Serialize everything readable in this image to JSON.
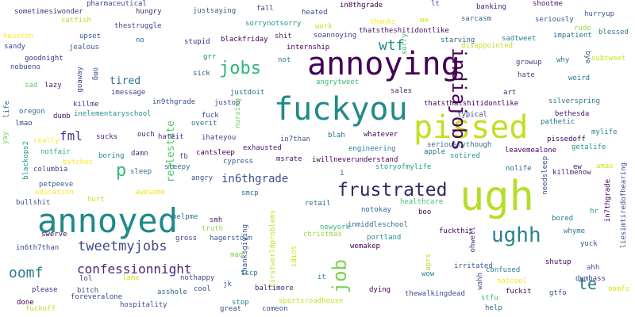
{
  "words": [
    {
      "text": "annoying",
      "color": "#440154"
    },
    {
      "text": "fuckyou",
      "color": "#1f8a89"
    },
    {
      "text": "pissed",
      "color": "#c2df23"
    },
    {
      "text": "ugh",
      "color": "#b5de2b"
    },
    {
      "text": "annoyed",
      "color": "#1f8a89"
    },
    {
      "text": "frustrated",
      "color": "#35275f"
    },
    {
      "text": "ughh",
      "color": "#26838e"
    },
    {
      "text": "jobs",
      "color": "#2fb47c"
    },
    {
      "text": "indiajobs",
      "color": "#440154"
    },
    {
      "text": "job",
      "color": "#7ad151"
    },
    {
      "text": "wtf",
      "color": "#1f8a89"
    },
    {
      "text": "tweetmyjobs",
      "color": "#3e4a89"
    },
    {
      "text": "confessionnight",
      "color": "#482677"
    },
    {
      "text": "oomf",
      "color": "#2a7b8e"
    },
    {
      "text": "fml",
      "color": "#453781"
    },
    {
      "text": "te",
      "color": "#27808e"
    },
    {
      "text": "p",
      "color": "#35b779"
    },
    {
      "text": "in6thgrade",
      "color": "#3b518b"
    },
    {
      "text": "tired",
      "color": "#2c728e"
    },
    {
      "text": "realestate",
      "color": "#56c667"
    },
    {
      "text": "sometimesiwonder",
      "color": "#46327e"
    },
    {
      "text": "pharmaceutical",
      "color": "#3f4788"
    },
    {
      "text": "hungry",
      "color": "#472a7a"
    },
    {
      "text": "justsaying",
      "color": "#33638d"
    },
    {
      "text": "fall",
      "color": "#433e85"
    },
    {
      "text": "heated",
      "color": "#3e4989"
    },
    {
      "text": "in8thgrade",
      "color": "#440154"
    },
    {
      "text": "banking",
      "color": "#482475"
    },
    {
      "text": "shootme",
      "color": "#481a6c"
    },
    {
      "text": "catfish",
      "color": "#b8de29"
    },
    {
      "text": "thestruggle",
      "color": "#3e4a89"
    },
    {
      "text": "sorrynotsorry",
      "color": "#21918c"
    },
    {
      "text": "work",
      "color": "#bddf26"
    },
    {
      "text": "thanks",
      "color": "#fde725"
    },
    {
      "text": "me",
      "color": "#d2e21b"
    },
    {
      "text": "sarcasm",
      "color": "#31688e"
    },
    {
      "text": "seriously",
      "color": "#38598c"
    },
    {
      "text": "hurryup",
      "color": "#3a548c"
    },
    {
      "text": "rude",
      "color": "#95d840"
    },
    {
      "text": "blessed",
      "color": "#287d8e"
    },
    {
      "text": "houston",
      "color": "#fde725"
    },
    {
      "text": "upset",
      "color": "#3b528b"
    },
    {
      "text": "no",
      "color": "#2c738e"
    },
    {
      "text": "stupid",
      "color": "#472d7b"
    },
    {
      "text": "blackfriday",
      "color": "#440154"
    },
    {
      "text": "shit",
      "color": "#482071"
    },
    {
      "text": "soannoying",
      "color": "#404588"
    },
    {
      "text": "thatstheshitidontlike",
      "color": "#470e61"
    },
    {
      "text": "sorry",
      "color": "#38b977"
    },
    {
      "text": "starving",
      "color": "#31688e"
    },
    {
      "text": "sadtweet",
      "color": "#25848e"
    },
    {
      "text": "impatient",
      "color": "#2d708e"
    },
    {
      "text": "lt",
      "color": "#3b528b"
    },
    {
      "text": "sandy",
      "color": "#3d4d8a"
    },
    {
      "text": "jealous",
      "color": "#38598c"
    },
    {
      "text": "internship",
      "color": "#440154"
    },
    {
      "text": "disappointed",
      "color": "#c2df23"
    },
    {
      "text": "subtweet",
      "color": "#c8e020"
    },
    {
      "text": "goodnight",
      "color": "#472c7a"
    },
    {
      "text": "grr",
      "color": "#24868e"
    },
    {
      "text": "not",
      "color": "#29798e"
    },
    {
      "text": "growup",
      "color": "#433e85"
    },
    {
      "text": "why",
      "color": "#2b758e"
    },
    {
      "text": "bye",
      "color": "#3b528b"
    },
    {
      "text": "nobueno",
      "color": "#3e4a89"
    },
    {
      "text": "omg",
      "color": "#39558c"
    },
    {
      "text": "goaway",
      "color": "#414487"
    },
    {
      "text": "angrytweet",
      "color": "#3dbc74"
    },
    {
      "text": "hate",
      "color": "#3f4889"
    },
    {
      "text": "weird",
      "color": "#2a768e"
    },
    {
      "text": "sad",
      "color": "#5ec962"
    },
    {
      "text": "lazy",
      "color": "#481b6d"
    },
    {
      "text": "sick",
      "color": "#3a548c"
    },
    {
      "text": "sales",
      "color": "#481f70"
    },
    {
      "text": "art",
      "color": "#482878"
    },
    {
      "text": "imessage",
      "color": "#424186"
    },
    {
      "text": "justdoit",
      "color": "#2d708e"
    },
    {
      "text": "justop",
      "color": "#3e4a89"
    },
    {
      "text": "thatsthatshitidontlike",
      "color": "#440154"
    },
    {
      "text": "silverspring",
      "color": "#2a788e"
    },
    {
      "text": "life",
      "color": "#2c728e"
    },
    {
      "text": "killme",
      "color": "#46337f"
    },
    {
      "text": "in9thgrade",
      "color": "#3b528b"
    },
    {
      "text": "oregon",
      "color": "#2e6e8e"
    },
    {
      "text": "inelementaryschool",
      "color": "#21918c"
    },
    {
      "text": "dumb",
      "color": "#481668"
    },
    {
      "text": "nursing",
      "color": "#70cf57"
    },
    {
      "text": "fuck",
      "color": "#414487"
    },
    {
      "text": "overit",
      "color": "#2f6c8e"
    },
    {
      "text": "in7than",
      "color": "#3b528b"
    },
    {
      "text": "typical",
      "color": "#3e4a89"
    },
    {
      "text": "bethesda",
      "color": "#481d6f"
    },
    {
      "text": "lmao",
      "color": "#414487"
    },
    {
      "text": "pathetic",
      "color": "#2c728e"
    },
    {
      "text": "mylife",
      "color": "#25848e"
    },
    {
      "text": "sucks",
      "color": "#482475"
    },
    {
      "text": "ouch",
      "color": "#482878"
    },
    {
      "text": "hateit",
      "color": "#46337f"
    },
    {
      "text": "ihateyou",
      "color": "#3f4788"
    },
    {
      "text": "blah",
      "color": "#2c728e"
    },
    {
      "text": "whatever",
      "color": "#440154"
    },
    {
      "text": "pissedoff",
      "color": "#440154"
    },
    {
      "text": "yay",
      "color": "#73d056"
    },
    {
      "text": "really",
      "color": "#fde725"
    },
    {
      "text": "seriouslythough",
      "color": "#2e6f8e"
    },
    {
      "text": "getalife",
      "color": "#20928c"
    },
    {
      "text": "notfair",
      "color": "#2db27d"
    },
    {
      "text": "boring",
      "color": "#287d8e"
    },
    {
      "text": "damn",
      "color": "#453781"
    },
    {
      "text": "cantsleep",
      "color": "#440154"
    },
    {
      "text": "exhausted",
      "color": "#482172"
    },
    {
      "text": "engineering",
      "color": "#24868e"
    },
    {
      "text": "apple",
      "color": "#2e6e8e"
    },
    {
      "text": "leavemealone",
      "color": "#440154"
    },
    {
      "text": "blackops2",
      "color": "#21908d"
    },
    {
      "text": "bitches",
      "color": "#fde725"
    },
    {
      "text": "fb",
      "color": "#3b528b"
    },
    {
      "text": "msrate",
      "color": "#481668"
    },
    {
      "text": "iwillneverunderstand",
      "color": "#440154"
    },
    {
      "text": "sotired",
      "color": "#20928c"
    },
    {
      "text": "amas",
      "color": "#d0e11c"
    },
    {
      "text": "columbia",
      "color": "#3e4989"
    },
    {
      "text": "sleep",
      "color": "#2b758e"
    },
    {
      "text": "cypress",
      "color": "#38598c"
    },
    {
      "text": "storyofmylife",
      "color": "#20a386"
    },
    {
      "text": "nolife",
      "color": "#2f6c8e"
    },
    {
      "text": "ew",
      "color": "#481a6c"
    },
    {
      "text": "killmenow",
      "color": "#482475"
    },
    {
      "text": "needsleep",
      "color": "#3a548c"
    },
    {
      "text": "in7thgrade",
      "color": "#440154"
    },
    {
      "text": "petpeeve",
      "color": "#31688e"
    },
    {
      "text": "sleepy",
      "color": "#2a788e"
    },
    {
      "text": "angry",
      "color": "#3e4989"
    },
    {
      "text": "1",
      "color": "#29798e"
    },
    {
      "text": "education",
      "color": "#fde725"
    },
    {
      "text": "awesome",
      "color": "#f1e51d"
    },
    {
      "text": "smcp",
      "color": "#2c728e"
    },
    {
      "text": "healthcare",
      "color": "#4ac16d"
    },
    {
      "text": "bullshit",
      "color": "#3b528b"
    },
    {
      "text": "hurt",
      "color": "#c8e020"
    },
    {
      "text": "retail",
      "color": "#2e6e8e"
    },
    {
      "text": "notokay",
      "color": "#2e6e8e"
    },
    {
      "text": "liesimtiredofhearing",
      "color": "#3b528b"
    },
    {
      "text": "bored",
      "color": "#2a768e"
    },
    {
      "text": "boo",
      "color": "#440154"
    },
    {
      "text": "hr",
      "color": "#1f9e89"
    },
    {
      "text": "helpme",
      "color": "#2d708e"
    },
    {
      "text": "thanksgiving",
      "color": "#3b528b"
    },
    {
      "text": "smh",
      "color": "#482173"
    },
    {
      "text": "newyork",
      "color": "#31b57b"
    },
    {
      "text": "whyme",
      "color": "#2a788e"
    },
    {
      "text": "swerve",
      "color": "#440154"
    },
    {
      "text": "truth",
      "color": "#8bd646"
    },
    {
      "text": "firstworldproblems",
      "color": "#c2df23"
    },
    {
      "text": "inmiddleschool",
      "color": "#2e6e8e"
    },
    {
      "text": "christmas",
      "color": "#95d840"
    },
    {
      "text": "portland",
      "color": "#21918c"
    },
    {
      "text": "fuckthis",
      "color": "#440154"
    },
    {
      "text": "ohwell",
      "color": "#46327e"
    },
    {
      "text": "yuck",
      "color": "#3b528b"
    },
    {
      "text": "gross",
      "color": "#424086"
    },
    {
      "text": "hagerstown",
      "color": "#38598c"
    },
    {
      "text": "idiot",
      "color": "#d8e219"
    },
    {
      "text": "wemakep",
      "color": "#440154"
    },
    {
      "text": "in6th7than",
      "color": "#3e4a89"
    },
    {
      "text": "mad",
      "color": "#7ad151"
    },
    {
      "text": "shutup",
      "color": "#440154"
    },
    {
      "text": "aprs",
      "color": "#addc30"
    },
    {
      "text": "irritated",
      "color": "#39558c"
    },
    {
      "text": "confused",
      "color": "#27808e"
    },
    {
      "text": "ahh",
      "color": "#3b528b"
    },
    {
      "text": "please",
      "color": "#472d7b"
    },
    {
      "text": "tscp",
      "color": "#2a788e"
    },
    {
      "text": "baltimore",
      "color": "#482071"
    },
    {
      "text": "dying",
      "color": "#440154"
    },
    {
      "text": "wahh",
      "color": "#3d4d8a"
    },
    {
      "text": "lol",
      "color": "#433e85"
    },
    {
      "text": "lame",
      "color": "#d8e219"
    },
    {
      "text": "nothappy",
      "color": "#3e4a89"
    },
    {
      "text": "jk",
      "color": "#38598c"
    },
    {
      "text": "wow",
      "color": "#26818e"
    },
    {
      "text": "notcool",
      "color": "#f1e51d"
    },
    {
      "text": "dumbass",
      "color": "#433e85"
    },
    {
      "text": "it",
      "color": "#21918c"
    },
    {
      "text": "bitch",
      "color": "#3e4a89"
    },
    {
      "text": "asshole",
      "color": "#31688e"
    },
    {
      "text": "cool",
      "color": "#3b528b"
    },
    {
      "text": "thewalkingdead",
      "color": "#3e4a89"
    },
    {
      "text": "fuckit",
      "color": "#440154"
    },
    {
      "text": "gtfo",
      "color": "#3b528b"
    },
    {
      "text": "oomfs",
      "color": "#d8e219"
    },
    {
      "text": "foreveralone",
      "color": "#3e4a89"
    },
    {
      "text": "done",
      "color": "#440154"
    },
    {
      "text": "hospitality",
      "color": "#3b528b"
    },
    {
      "text": "stop",
      "color": "#25848e"
    },
    {
      "text": "sportsroadhouse",
      "color": "#c2df23"
    },
    {
      "text": "stfu",
      "color": "#3dbc74"
    },
    {
      "text": "fuckoff",
      "color": "#c2df23"
    },
    {
      "text": "great",
      "color": "#3e4a89"
    },
    {
      "text": "comeon",
      "color": "#3b528b"
    },
    {
      "text": "help",
      "color": "#2e6e8e"
    }
  ]
}
